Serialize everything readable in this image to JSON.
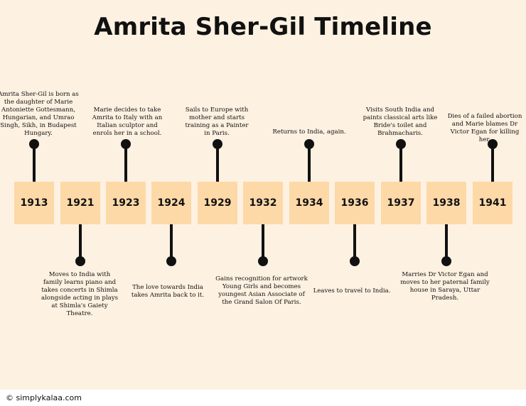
{
  "title": "Amrita Sher-Gil Timeline",
  "footer": "© simplykalaa.com",
  "years": [
    "1913",
    "1921",
    "1923",
    "1924",
    "1929",
    "1932",
    "1934",
    "1936",
    "1937",
    "1938",
    "1941"
  ],
  "events": {
    "e1913": "Amrita Sher-Gil is born as the daughter of  Marie Antoniette Gottesmann, Hungarian, and Umrao Singh, Sikh, in Budapest Hungary.",
    "e1921": "Moves to India with family learns piano and takes concerts in Shimla alongside acting in plays at Shimla's Gaiety Theatre.",
    "e1923": "Marie decides to take Amrita to Italy with an Italian sculptor and enrols her in a school.",
    "e1924": "The love towards India takes Amrita back to it.",
    "e1929": "Sails to Europe with mother and starts training as a Painter in Paris.",
    "e1932": "Gains recognition for artwork Young Girls and becomes youngest Asian Associate of the Grand Salon Of Paris.",
    "e1934": "Returns to India, again.",
    "e1936": "Leaves to travel to India.",
    "e1937": "Visits South India and paints classical arts like Bride's toilet and Brahmacharis.",
    "e1938": "Marries Dr Victor Egan and moves to her paternal family house in Saraya, Uttar Pradesh.",
    "e1941": "Dies of a failed abortion and Marie blames Dr Victor Egan for killing her."
  }
}
